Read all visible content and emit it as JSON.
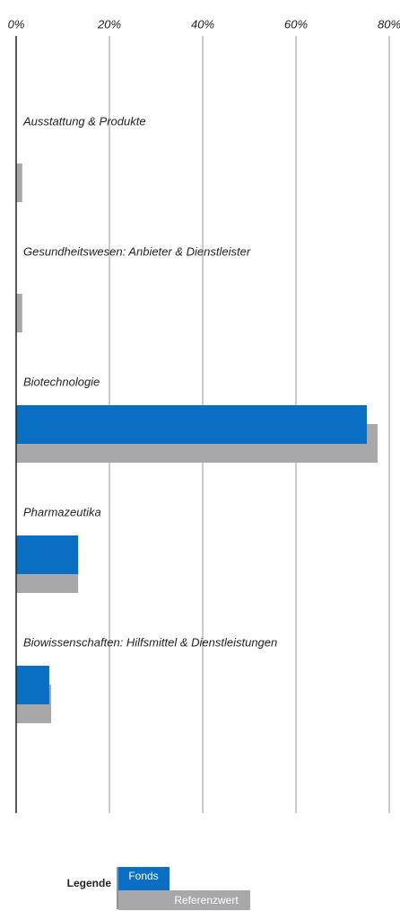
{
  "chart_data": {
    "type": "hbar",
    "categories": [
      "Ausstattung & Produkte",
      "Gesundheitswesen: Anbieter & Dienstleister",
      "Biotechnologie",
      "Pharmazeutika",
      "Biowissenschaften: Hilfsmittel & Dienstleistungen"
    ],
    "series": [
      {
        "name": "Fonds",
        "color": "#0a6fc2",
        "values": [
          0,
          0,
          75.2,
          13.3,
          7.1
        ]
      },
      {
        "name": "Referenzwert",
        "color": "#a8a8ab",
        "values": [
          1.3,
          1.3,
          77.5,
          13.3,
          7.5
        ]
      }
    ],
    "xlim": [
      0,
      80
    ],
    "xticks": [
      {
        "value": 0,
        "label": "0%"
      },
      {
        "value": 20,
        "label": "20%"
      },
      {
        "value": 40,
        "label": "40%"
      },
      {
        "value": 60,
        "label": "60%"
      },
      {
        "value": 80,
        "label": "80%"
      }
    ],
    "grid": true,
    "legend_title": "Legende"
  }
}
